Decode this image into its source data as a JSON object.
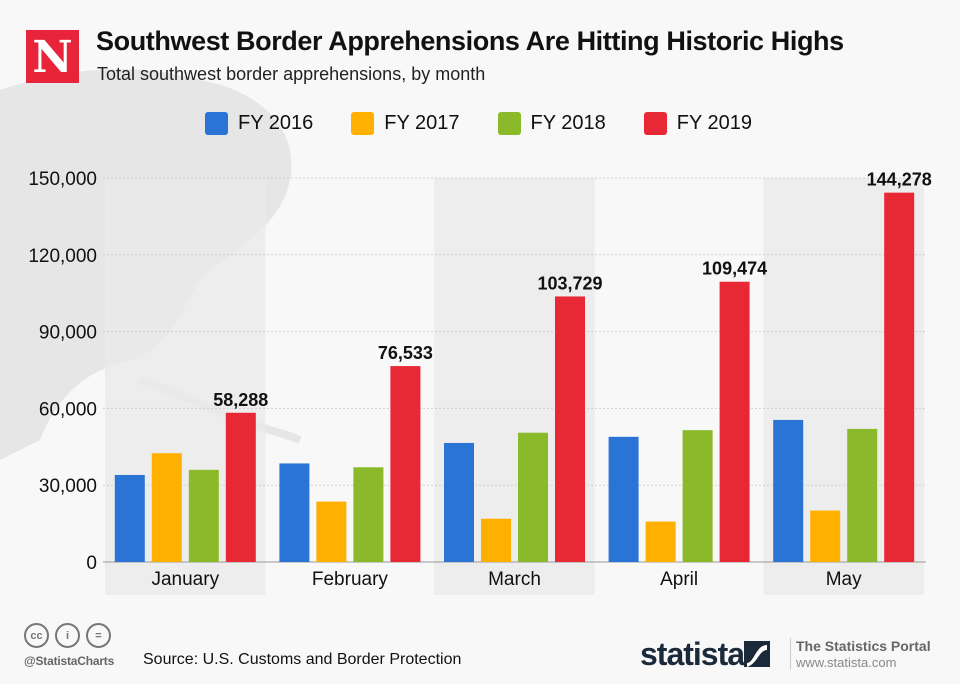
{
  "header": {
    "logo_letter": "N",
    "title": "Southwest Border Apprehensions Are Hitting Historic Highs",
    "subtitle": "Total southwest border apprehensions, by month"
  },
  "footer": {
    "cc_icons": [
      "cc-icon",
      "attribution-icon",
      "no-derivatives-icon"
    ],
    "cc_labels": [
      "cc",
      "i",
      "="
    ],
    "handle": "@StatistaCharts",
    "source": "Source: U.S. Customs and Border Protection",
    "brand": "statista",
    "portal_title": "The Statistics Portal",
    "portal_url": "www.statista.com"
  },
  "colors": {
    "FY 2016": "#2a74d6",
    "FY 2017": "#ffb000",
    "FY 2018": "#8aba2a",
    "FY 2019": "#e92835",
    "logo": "#e8243a"
  },
  "chart_data": {
    "type": "bar",
    "title": "Southwest Border Apprehensions Are Hitting Historic Highs",
    "subtitle": "Total southwest border apprehensions, by month",
    "xlabel": "",
    "ylabel": "",
    "ylim": [
      0,
      150000
    ],
    "yticks": [
      0,
      30000,
      60000,
      90000,
      120000,
      150000
    ],
    "ytick_labels": [
      "0",
      "30,000",
      "60,000",
      "90,000",
      "120,000",
      "150,000"
    ],
    "grid": true,
    "legend_position": "top",
    "categories": [
      "January",
      "February",
      "March",
      "April",
      "May"
    ],
    "series": [
      {
        "name": "FY 2016",
        "values": [
          34000,
          38500,
          46500,
          48900,
          55500
        ]
      },
      {
        "name": "FY 2017",
        "values": [
          42500,
          23600,
          16900,
          15800,
          20100
        ]
      },
      {
        "name": "FY 2018",
        "values": [
          36000,
          37000,
          50500,
          51500,
          52000
        ]
      },
      {
        "name": "FY 2019",
        "values": [
          58288,
          76533,
          103729,
          109474,
          144278
        ],
        "data_labels": [
          "58,288",
          "76,533",
          "103,729",
          "109,474",
          "144,278"
        ]
      }
    ]
  }
}
